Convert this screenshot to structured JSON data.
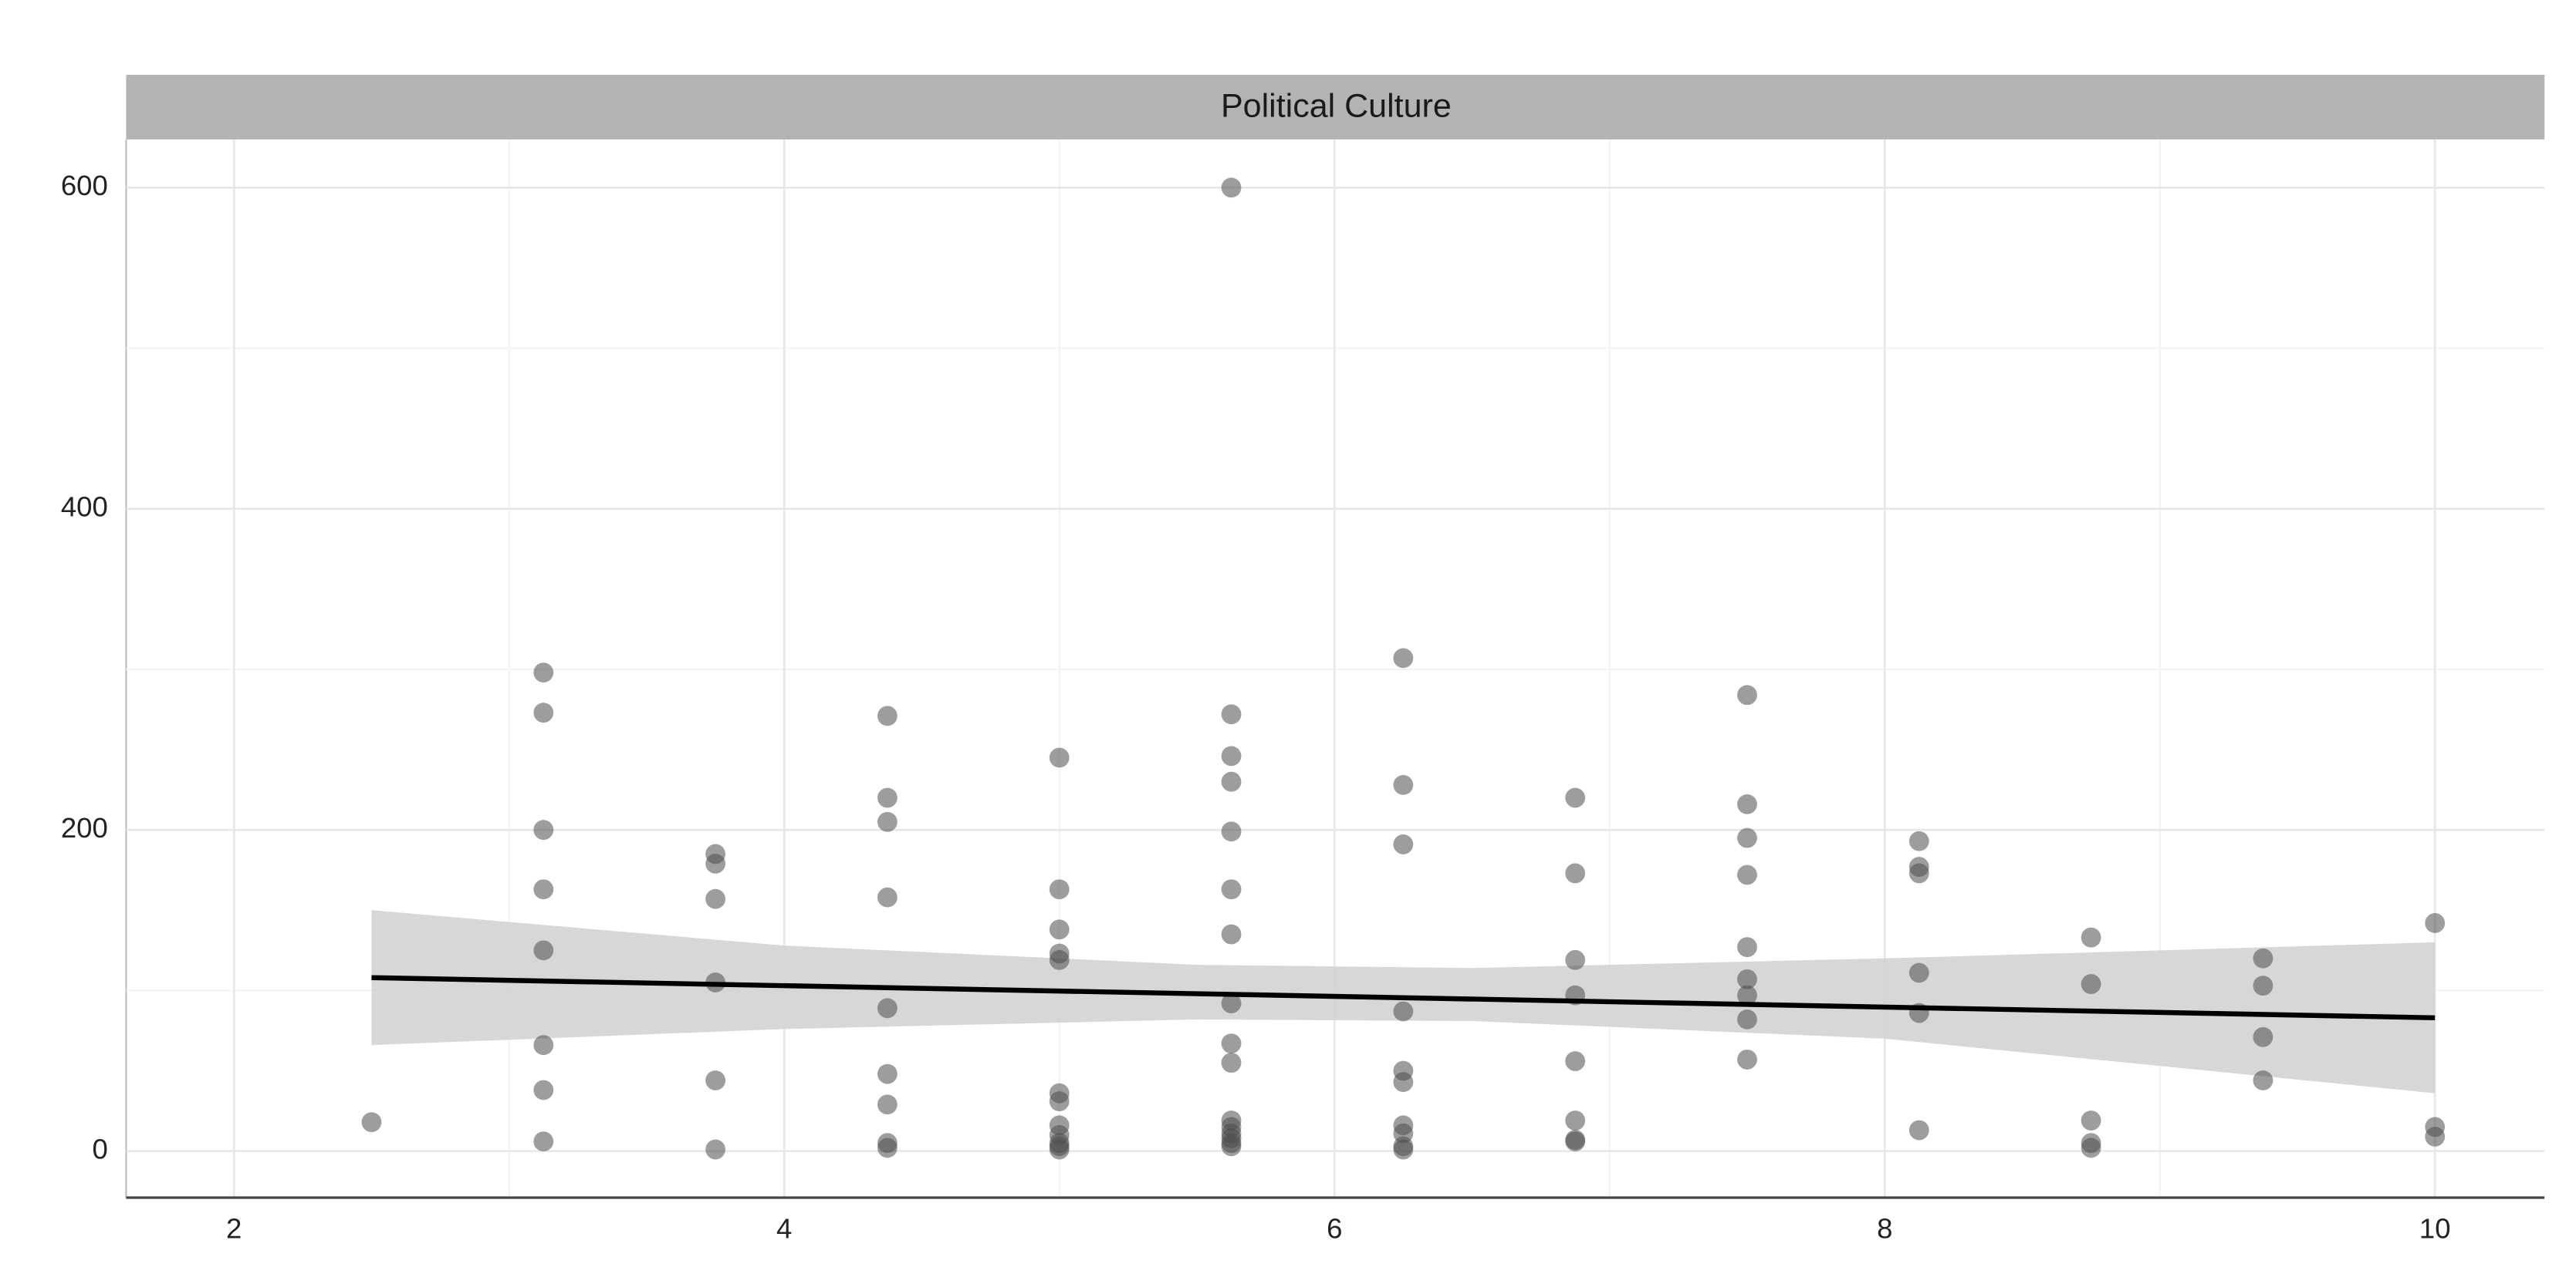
{
  "chart_data": {
    "type": "scatter",
    "title": "Political Culture",
    "xlim": [
      1.608,
      10.398
    ],
    "ylim": [
      -29,
      630
    ],
    "xticks": [
      2,
      4,
      6,
      8,
      10
    ],
    "yticks": [
      0,
      200,
      400,
      600
    ],
    "xminor": [
      3,
      5,
      7,
      9
    ],
    "yminor": [
      100,
      300,
      500
    ],
    "grid": true,
    "series": [
      {
        "color": "#4d4d4d",
        "x": [
          2.5,
          3.125,
          3.125,
          3.125,
          3.125,
          3.125,
          3.125,
          3.125,
          3.125,
          3.75,
          3.75,
          3.75,
          3.75,
          3.75,
          3.75,
          4.375,
          4.375,
          4.375,
          4.375,
          4.375,
          4.375,
          4.375,
          4.375,
          4.375,
          5,
          5,
          5,
          5,
          5,
          5,
          5,
          5,
          5,
          5,
          5,
          5,
          5.625,
          5.625,
          5.625,
          5.625,
          5.625,
          5.625,
          5.625,
          5.625,
          5.625,
          5.625,
          5.625,
          5.625,
          5.625,
          5.625,
          5.625,
          5.625,
          6.25,
          6.25,
          6.25,
          6.25,
          6.25,
          6.25,
          6.25,
          6.25,
          6.25,
          6.25,
          6.875,
          6.875,
          6.875,
          6.875,
          6.875,
          6.875,
          6.875,
          6.875,
          7.5,
          7.5,
          7.5,
          7.5,
          7.5,
          7.5,
          7.5,
          7.5,
          7.5,
          8.125,
          8.125,
          8.125,
          8.125,
          8.125,
          8.125,
          8.75,
          8.75,
          8.75,
          8.75,
          8.75,
          9.375,
          9.375,
          9.375,
          9.375,
          10,
          10,
          10
        ],
        "values": [
          18,
          298,
          273,
          200,
          163,
          125,
          66,
          38,
          6,
          185,
          179,
          157,
          105,
          44,
          1,
          271,
          220,
          205,
          158,
          89,
          48,
          29,
          5,
          2,
          245,
          163,
          138,
          123,
          119,
          36,
          31,
          16,
          10,
          5,
          3,
          1,
          600,
          272,
          246,
          230,
          199,
          163,
          135,
          92,
          67,
          55,
          19,
          15,
          11,
          8,
          5,
          3,
          307,
          228,
          191,
          87,
          50,
          43,
          16,
          11,
          3,
          1,
          220,
          173,
          119,
          97,
          56,
          19,
          7,
          6,
          284,
          216,
          195,
          172,
          127,
          107,
          97,
          82,
          57,
          193,
          177,
          173,
          111,
          86,
          13,
          133,
          104,
          19,
          5,
          2,
          120,
          103,
          71,
          44,
          142,
          15,
          9
        ]
      }
    ],
    "fit": {
      "color": "#000000",
      "x": [
        2.5,
        10
      ],
      "values": [
        108,
        83
      ],
      "band_color": "#d3d3d3",
      "band_x": [
        2.5,
        4,
        5.5,
        6.5,
        8,
        10
      ],
      "band_lower": [
        66,
        76,
        82,
        81,
        70,
        36
      ],
      "band_upper": [
        150,
        128,
        116,
        114,
        120,
        130
      ]
    }
  }
}
